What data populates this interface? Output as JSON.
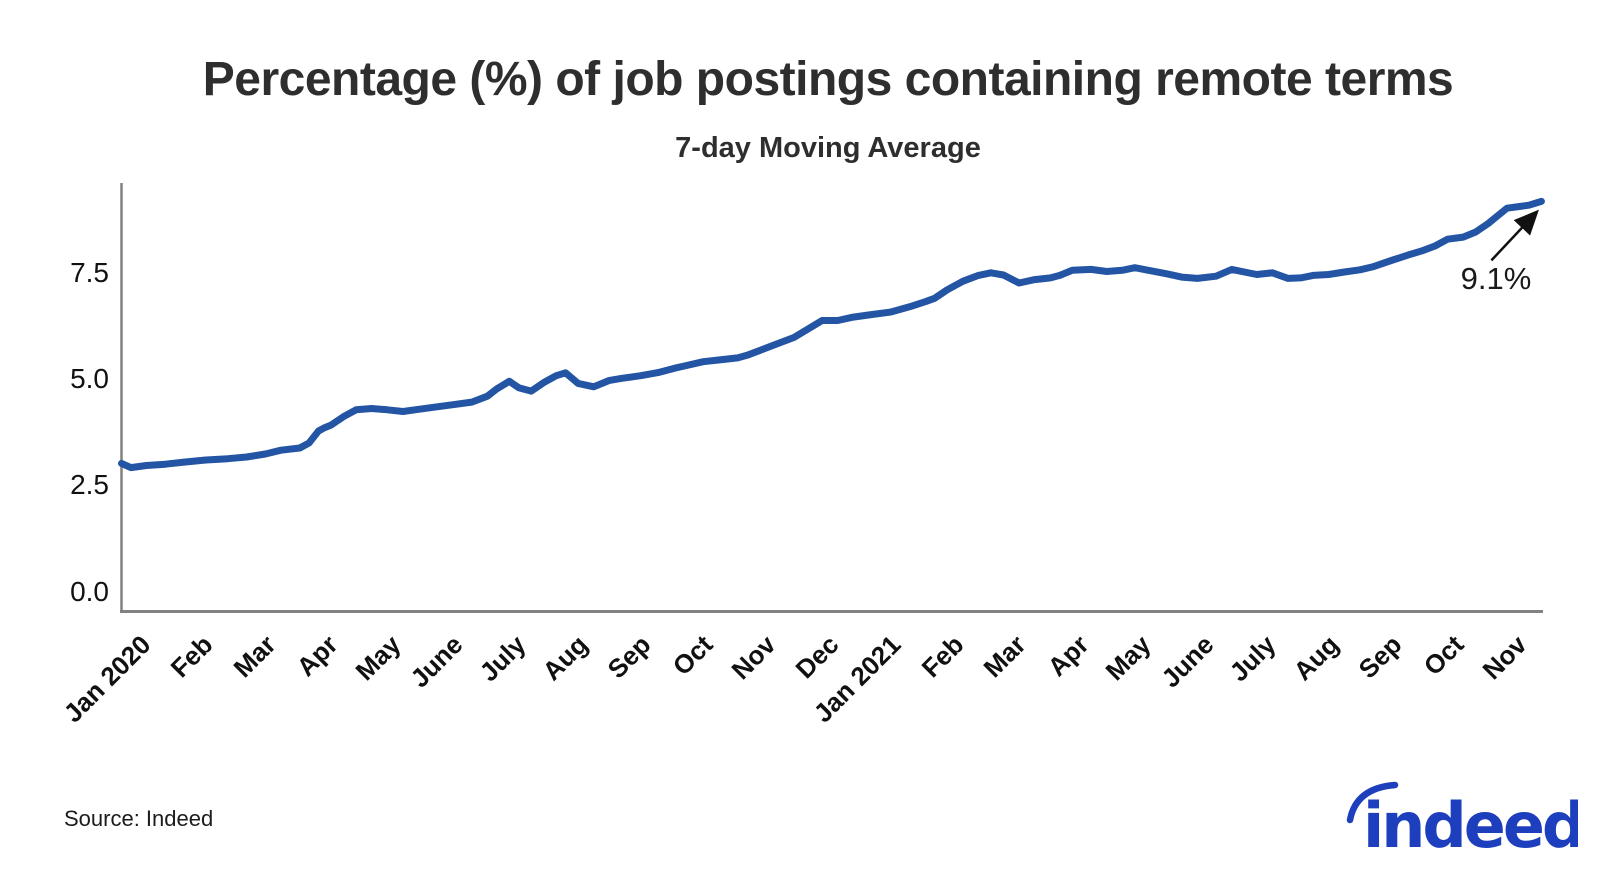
{
  "header": {
    "title": "Percentage (%) of job postings containing remote terms",
    "subtitle": "7-day Moving Average"
  },
  "footer": {
    "source": "Source: Indeed",
    "logo_text": "indeed"
  },
  "colors": {
    "line": "#2355a4",
    "logo": "#1e3fbd",
    "title_text": "#2e2e2e",
    "axis": "#828282",
    "arrow": "#111111"
  },
  "chart_data": {
    "type": "line",
    "title": "Percentage (%) of job postings containing remote terms",
    "subtitle": "7-day Moving Average",
    "xlabel": "",
    "ylabel": "",
    "grid": false,
    "legend": "none",
    "x_categories": [
      "Jan 2020",
      "Feb",
      "Mar",
      "Apr",
      "May",
      "June",
      "July",
      "Aug",
      "Sep",
      "Oct",
      "Nov",
      "Dec",
      "Jan 2021",
      "Feb",
      "Mar",
      "Apr",
      "May",
      "June",
      "July",
      "Aug",
      "Sep",
      "Oct",
      "Nov"
    ],
    "y_ticks": [
      0.0,
      2.5,
      5.0,
      7.5
    ],
    "y_axis_range": [
      -0.45,
      9.6
    ],
    "annotation": {
      "label": "9.1%",
      "x": "late Nov 2021",
      "y": 9.1
    },
    "series": [
      {
        "name": "% of job postings containing remote terms (7-day moving average)",
        "color": "#2355a4",
        "points_month_value": [
          [
            0.0,
            3.02
          ],
          [
            0.15,
            2.92
          ],
          [
            0.4,
            2.97
          ],
          [
            0.7,
            3.0
          ],
          [
            1.0,
            3.05
          ],
          [
            1.35,
            3.1
          ],
          [
            1.7,
            3.13
          ],
          [
            2.0,
            3.17
          ],
          [
            2.3,
            3.24
          ],
          [
            2.55,
            3.33
          ],
          [
            2.85,
            3.38
          ],
          [
            3.0,
            3.5
          ],
          [
            3.15,
            3.78
          ],
          [
            3.25,
            3.86
          ],
          [
            3.35,
            3.92
          ],
          [
            3.55,
            4.12
          ],
          [
            3.75,
            4.28
          ],
          [
            4.0,
            4.31
          ],
          [
            4.25,
            4.28
          ],
          [
            4.5,
            4.24
          ],
          [
            4.75,
            4.29
          ],
          [
            5.0,
            4.34
          ],
          [
            5.3,
            4.4
          ],
          [
            5.6,
            4.46
          ],
          [
            5.85,
            4.6
          ],
          [
            6.0,
            4.77
          ],
          [
            6.2,
            4.95
          ],
          [
            6.35,
            4.8
          ],
          [
            6.55,
            4.72
          ],
          [
            6.75,
            4.92
          ],
          [
            6.95,
            5.08
          ],
          [
            7.1,
            5.15
          ],
          [
            7.3,
            4.9
          ],
          [
            7.55,
            4.82
          ],
          [
            7.8,
            4.97
          ],
          [
            8.0,
            5.02
          ],
          [
            8.3,
            5.08
          ],
          [
            8.6,
            5.16
          ],
          [
            8.85,
            5.26
          ],
          [
            9.0,
            5.31
          ],
          [
            9.3,
            5.41
          ],
          [
            9.6,
            5.46
          ],
          [
            9.85,
            5.5
          ],
          [
            10.0,
            5.56
          ],
          [
            10.25,
            5.7
          ],
          [
            10.5,
            5.84
          ],
          [
            10.75,
            5.98
          ],
          [
            11.0,
            6.2
          ],
          [
            11.2,
            6.38
          ],
          [
            11.45,
            6.38
          ],
          [
            11.7,
            6.46
          ],
          [
            12.0,
            6.52
          ],
          [
            12.3,
            6.58
          ],
          [
            12.6,
            6.7
          ],
          [
            12.85,
            6.82
          ],
          [
            13.0,
            6.9
          ],
          [
            13.2,
            7.1
          ],
          [
            13.45,
            7.3
          ],
          [
            13.7,
            7.44
          ],
          [
            13.9,
            7.5
          ],
          [
            14.1,
            7.45
          ],
          [
            14.35,
            7.26
          ],
          [
            14.6,
            7.34
          ],
          [
            14.85,
            7.38
          ],
          [
            15.0,
            7.44
          ],
          [
            15.2,
            7.56
          ],
          [
            15.5,
            7.58
          ],
          [
            15.75,
            7.53
          ],
          [
            16.0,
            7.56
          ],
          [
            16.2,
            7.62
          ],
          [
            16.45,
            7.55
          ],
          [
            16.7,
            7.48
          ],
          [
            16.95,
            7.4
          ],
          [
            17.2,
            7.37
          ],
          [
            17.5,
            7.42
          ],
          [
            17.75,
            7.58
          ],
          [
            17.95,
            7.52
          ],
          [
            18.15,
            7.46
          ],
          [
            18.4,
            7.5
          ],
          [
            18.65,
            7.37
          ],
          [
            18.85,
            7.38
          ],
          [
            19.05,
            7.44
          ],
          [
            19.3,
            7.46
          ],
          [
            19.55,
            7.52
          ],
          [
            19.8,
            7.57
          ],
          [
            20.0,
            7.64
          ],
          [
            20.3,
            7.79
          ],
          [
            20.55,
            7.91
          ],
          [
            20.8,
            8.02
          ],
          [
            21.0,
            8.13
          ],
          [
            21.2,
            8.29
          ],
          [
            21.45,
            8.34
          ],
          [
            21.65,
            8.46
          ],
          [
            21.85,
            8.66
          ],
          [
            22.0,
            8.84
          ],
          [
            22.15,
            9.02
          ],
          [
            22.35,
            9.06
          ],
          [
            22.5,
            9.09
          ],
          [
            22.7,
            9.18
          ]
        ]
      }
    ]
  }
}
